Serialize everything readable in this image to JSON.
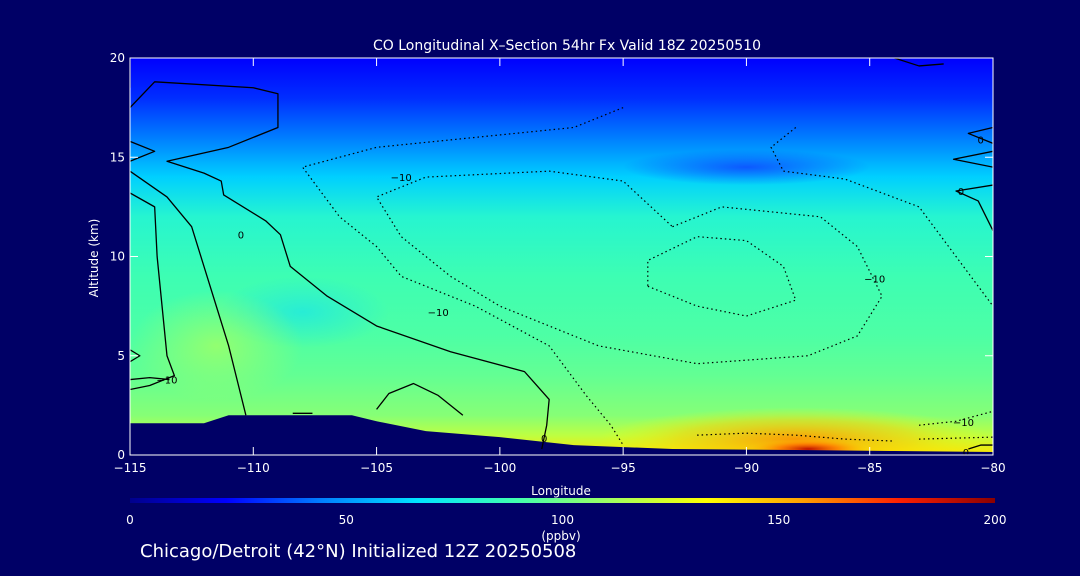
{
  "caption": "Chicago/Detroit (42°N) Initialized 12Z 20250508",
  "chart_data": {
    "type": "heatmap",
    "title": "CO Longitudinal X–Section 54hr  Fx Valid 18Z 20250510",
    "xlabel": "Longitude",
    "ylabel": "Altitude (km)",
    "xlim": [
      -115,
      -80
    ],
    "ylim": [
      0,
      20
    ],
    "xticks": [
      -115,
      -110,
      -105,
      -100,
      -95,
      -90,
      -85,
      -80
    ],
    "xtick_labels": [
      "−115",
      "−110",
      "−105",
      "−100",
      "−95",
      "−90",
      "−85",
      "−80"
    ],
    "yticks": [
      0,
      5,
      10,
      15,
      20
    ],
    "ytick_labels": [
      "0",
      "5",
      "10",
      "15",
      "20"
    ],
    "colorbar": {
      "label": "(ppbv)",
      "range": [
        0,
        200
      ],
      "ticks": [
        0,
        50,
        100,
        150,
        200
      ],
      "tick_labels": [
        "0",
        "50",
        "100",
        "150",
        "200"
      ],
      "colors": [
        "#00008b",
        "#0000ff",
        "#0080ff",
        "#00e5ff",
        "#40ffb0",
        "#a0ff60",
        "#ffff00",
        "#ffa000",
        "#ff2000",
        "#8b0000"
      ]
    },
    "field_profile_ppbv": [
      {
        "alt": 0,
        "value": 140
      },
      {
        "alt": 1,
        "value": 118
      },
      {
        "alt": 2,
        "value": 105
      },
      {
        "alt": 4,
        "value": 97
      },
      {
        "alt": 6,
        "value": 92
      },
      {
        "alt": 9,
        "value": 88
      },
      {
        "alt": 12,
        "value": 80
      },
      {
        "alt": 14,
        "value": 62
      },
      {
        "alt": 16,
        "value": 44
      },
      {
        "alt": 18,
        "value": 30
      },
      {
        "alt": 20,
        "value": 22
      }
    ],
    "surface_peak": {
      "lon": -87.5,
      "alt": 0.3,
      "value": 190
    },
    "terrain_km": [
      {
        "lon": -115,
        "alt": 1.6
      },
      {
        "lon": -112,
        "alt": 1.6
      },
      {
        "lon": -111,
        "alt": 2.0
      },
      {
        "lon": -106,
        "alt": 2.0
      },
      {
        "lon": -105,
        "alt": 1.7
      },
      {
        "lon": -103,
        "alt": 1.2
      },
      {
        "lon": -100,
        "alt": 0.9
      },
      {
        "lon": -97,
        "alt": 0.5
      },
      {
        "lon": -93,
        "alt": 0.3
      },
      {
        "lon": -88,
        "alt": 0.25
      },
      {
        "lon": -84,
        "alt": 0.2
      },
      {
        "lon": -80,
        "alt": 0.15
      }
    ],
    "contours": [
      {
        "label": "0",
        "style": "solid",
        "points": [
          [
            -115,
            17.5
          ],
          [
            -114,
            18.8
          ],
          [
            -110,
            18.5
          ],
          [
            -109,
            18.2
          ],
          [
            -109,
            16.5
          ],
          [
            -111,
            15.5
          ],
          [
            -113.5,
            14.8
          ],
          [
            -112,
            14.2
          ],
          [
            -111.3,
            13.8
          ],
          [
            -111.2,
            13.1
          ],
          [
            -109.5,
            11.8
          ],
          [
            -108.9,
            11.1
          ],
          [
            -108.5,
            9.5
          ],
          [
            -107,
            8.0
          ],
          [
            -105,
            6.5
          ],
          [
            -102,
            5.2
          ],
          [
            -99,
            4.2
          ],
          [
            -98,
            2.8
          ],
          [
            -98.1,
            1.5
          ],
          [
            -98.3,
            0.3
          ]
        ]
      },
      {
        "label": "0",
        "style": "solid",
        "points": [
          [
            -115,
            14.3
          ],
          [
            -113.5,
            13.0
          ],
          [
            -112.5,
            11.5
          ],
          [
            -112,
            9.5
          ],
          [
            -111.5,
            7.5
          ],
          [
            -111,
            5.5
          ],
          [
            -110.5,
            3.0
          ],
          [
            -110.3,
            2.0
          ]
        ]
      },
      {
        "label": "",
        "style": "solid",
        "points": [
          [
            -115,
            15.8
          ],
          [
            -114,
            15.3
          ],
          [
            -115,
            14.8
          ]
        ]
      },
      {
        "label": "",
        "style": "solid",
        "points": [
          [
            -115,
            13.2
          ],
          [
            -114,
            12.5
          ],
          [
            -113.9,
            10.0
          ],
          [
            -113.7,
            7.5
          ],
          [
            -113.5,
            5.0
          ],
          [
            -113.2,
            4.0
          ],
          [
            -114.2,
            3.5
          ],
          [
            -115,
            3.3
          ]
        ]
      },
      {
        "label": "",
        "style": "solid",
        "points": [
          [
            -115,
            5.3
          ],
          [
            -114.6,
            5.0
          ],
          [
            -115,
            4.7
          ]
        ]
      },
      {
        "label": "",
        "style": "solid",
        "points": [
          [
            -101.5,
            2.0
          ],
          [
            -102.5,
            3.0
          ],
          [
            -103.5,
            3.6
          ],
          [
            -104.5,
            3.1
          ],
          [
            -105,
            2.3
          ]
        ]
      },
      {
        "label": "",
        "style": "solid",
        "points": [
          [
            -108.4,
            2.1
          ],
          [
            -107.6,
            2.1
          ]
        ]
      },
      {
        "label": "",
        "style": "solid",
        "points": [
          [
            -115,
            20
          ],
          [
            -115,
            18.5
          ]
        ]
      },
      {
        "label": "0",
        "style": "solid",
        "points": [
          [
            -80,
            15.3
          ],
          [
            -81.6,
            14.9
          ],
          [
            -80,
            14.5
          ]
        ]
      },
      {
        "label": "0",
        "style": "solid",
        "points": [
          [
            -80,
            13.6
          ],
          [
            -81.5,
            13.3
          ],
          [
            -80.6,
            12.8
          ],
          [
            -80,
            11.3
          ]
        ]
      },
      {
        "label": "",
        "style": "solid",
        "points": [
          [
            -80,
            16.5
          ],
          [
            -81,
            16.2
          ],
          [
            -80,
            15.7
          ]
        ]
      },
      {
        "label": "",
        "style": "solid",
        "points": [
          [
            -84,
            20
          ],
          [
            -83,
            19.6
          ],
          [
            -82,
            19.7
          ]
        ]
      },
      {
        "label": "0",
        "style": "solid",
        "points": [
          [
            -81,
            0.3
          ],
          [
            -80.5,
            0.5
          ],
          [
            -80,
            0.5
          ]
        ]
      },
      {
        "label": "-10",
        "style": "dotted",
        "points": [
          [
            -95,
            17.5
          ],
          [
            -97,
            16.5
          ],
          [
            -101,
            16.0
          ],
          [
            -105,
            15.5
          ],
          [
            -108,
            14.5
          ],
          [
            -106.5,
            12.0
          ],
          [
            -105,
            10.5
          ],
          [
            -104,
            9.0
          ],
          [
            -101,
            7.5
          ],
          [
            -98,
            5.5
          ],
          [
            -96.5,
            3.0
          ],
          [
            -95.5,
            1.5
          ],
          [
            -95,
            0.5
          ]
        ]
      },
      {
        "label": "-10",
        "style": "dotted",
        "points": [
          [
            -93,
            11.5
          ],
          [
            -91,
            12.5
          ],
          [
            -87,
            12.0
          ],
          [
            -85.5,
            10.5
          ],
          [
            -84.5,
            8.0
          ],
          [
            -85.5,
            6.0
          ],
          [
            -87.5,
            5.0
          ],
          [
            -92,
            4.6
          ],
          [
            -96,
            5.5
          ],
          [
            -98,
            6.5
          ],
          [
            -100,
            7.5
          ],
          [
            -102,
            9.0
          ],
          [
            -104,
            11.0
          ],
          [
            -105,
            13.0
          ],
          [
            -103,
            14.0
          ],
          [
            -98,
            14.3
          ],
          [
            -95,
            13.8
          ],
          [
            -93,
            11.5
          ]
        ]
      },
      {
        "label": "",
        "style": "dotted",
        "points": [
          [
            -88,
            16.5
          ],
          [
            -89,
            15.5
          ],
          [
            -88.5,
            14.3
          ],
          [
            -86,
            13.9
          ],
          [
            -83,
            12.5
          ],
          [
            -81.5,
            10.0
          ],
          [
            -80,
            7.5
          ]
        ]
      },
      {
        "label": "",
        "style": "dotted",
        "points": [
          [
            -94,
            8.5
          ],
          [
            -92,
            7.5
          ],
          [
            -90,
            7.0
          ],
          [
            -88,
            7.8
          ],
          [
            -88.5,
            9.5
          ],
          [
            -90,
            10.8
          ],
          [
            -92,
            11.0
          ],
          [
            -94,
            9.8
          ],
          [
            -94,
            8.5
          ]
        ]
      },
      {
        "label": "-10",
        "style": "dotted",
        "points": [
          [
            -83,
            1.5
          ],
          [
            -81.5,
            1.7
          ],
          [
            -80,
            2.2
          ]
        ]
      },
      {
        "label": "",
        "style": "dotted",
        "points": [
          [
            -92,
            1.0
          ],
          [
            -90,
            1.1
          ],
          [
            -88,
            1.0
          ],
          [
            -86,
            0.8
          ],
          [
            -84,
            0.7
          ]
        ]
      },
      {
        "label": "",
        "style": "dotted",
        "points": [
          [
            -83,
            0.8
          ],
          [
            -80,
            0.9
          ]
        ]
      },
      {
        "label": "-10",
        "style": "solid",
        "points": [
          [
            -115,
            3.8
          ],
          [
            -114.2,
            3.9
          ],
          [
            -113.4,
            3.8
          ]
        ]
      }
    ],
    "contour_labels": [
      {
        "text": "0",
        "lon": -110.5,
        "alt": 11.1
      },
      {
        "text": "0",
        "lon": -98.2,
        "alt": 0.85
      },
      {
        "text": "−10",
        "lon": -104,
        "alt": 14.0
      },
      {
        "text": "−10",
        "lon": -102.5,
        "alt": 7.2
      },
      {
        "text": "−10",
        "lon": -84.8,
        "alt": 8.9
      },
      {
        "text": "−10",
        "lon": -113.5,
        "alt": 3.8
      },
      {
        "text": "−10",
        "lon": -81.2,
        "alt": 1.65
      },
      {
        "text": "0",
        "lon": -80.5,
        "alt": 15.9
      },
      {
        "text": "0",
        "lon": -81.3,
        "alt": 13.3
      },
      {
        "text": "0",
        "lon": -81.1,
        "alt": 0.15
      }
    ]
  }
}
